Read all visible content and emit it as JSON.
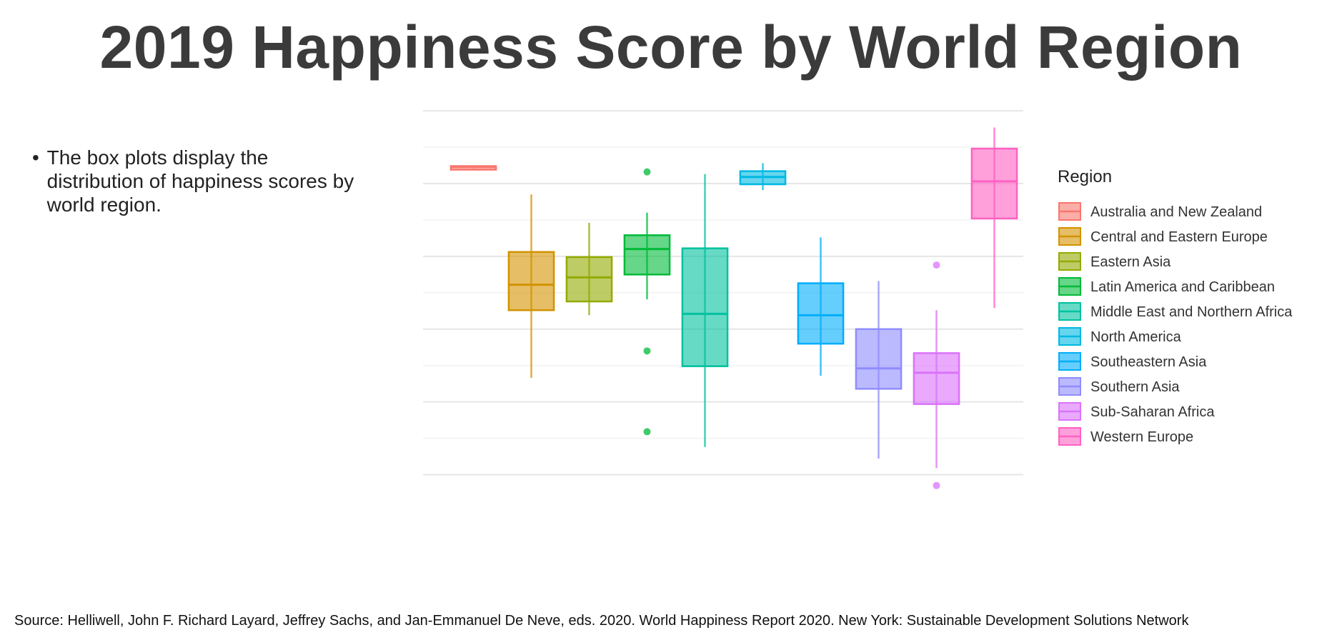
{
  "slide": {
    "title": "2019 Happiness Score by World Region",
    "bullet_symbol": "•",
    "bullet_text": "The box plots display the distribution of happiness scores by world region.",
    "source": "Source: Helliwell, John F. Richard Layard, Jeffrey Sachs, and Jan-Emmanuel De Neve, eds. 2020. World Happiness Report 2020. New York: Sustainable Development Solutions Network"
  },
  "chart_data": {
    "type": "box",
    "title": "",
    "xlabel": "",
    "ylabel": "",
    "ylim": [
      2.75,
      8.05
    ],
    "yticks": [
      3,
      4,
      5,
      6,
      7,
      8
    ],
    "grid": true,
    "legend_title": "Region",
    "legend_position": "right",
    "series": [
      {
        "name": "Australia and New Zealand",
        "color": "#F8766D",
        "q1": 7.22,
        "median": 7.23,
        "q3": 7.24,
        "whisker_low": 7.21,
        "whisker_high": 7.25,
        "outliers": []
      },
      {
        "name": "Central and Eastern Europe",
        "color": "#D39200",
        "q1": 5.26,
        "median": 5.61,
        "q3": 6.06,
        "whisker_low": 4.33,
        "whisker_high": 6.85,
        "outliers": []
      },
      {
        "name": "Eastern Asia",
        "color": "#93AA00",
        "q1": 5.38,
        "median": 5.71,
        "q3": 5.99,
        "whisker_low": 5.19,
        "whisker_high": 6.46,
        "outliers": []
      },
      {
        "name": "Latin America and Caribbean",
        "color": "#00BA38",
        "q1": 5.75,
        "median": 6.1,
        "q3": 6.29,
        "whisker_low": 5.41,
        "whisker_high": 6.6,
        "outliers": [
          7.16,
          4.7,
          3.59
        ]
      },
      {
        "name": "Middle East and Northern Africa",
        "color": "#00C19F",
        "q1": 4.49,
        "median": 5.21,
        "q3": 6.11,
        "whisker_low": 3.38,
        "whisker_high": 7.13,
        "outliers": []
      },
      {
        "name": "North America",
        "color": "#00B9E3",
        "q1": 6.99,
        "median": 7.09,
        "q3": 7.17,
        "whisker_low": 6.91,
        "whisker_high": 7.28,
        "outliers": []
      },
      {
        "name": "Southeastern Asia",
        "color": "#00ADFA",
        "q1": 4.8,
        "median": 5.19,
        "q3": 5.63,
        "whisker_low": 4.36,
        "whisker_high": 6.26,
        "outliers": []
      },
      {
        "name": "Southern Asia",
        "color": "#8F8CFF",
        "q1": 4.18,
        "median": 4.46,
        "q3": 5.0,
        "whisker_low": 3.22,
        "whisker_high": 5.66,
        "outliers": []
      },
      {
        "name": "Sub-Saharan Africa",
        "color": "#DB72FB",
        "q1": 3.97,
        "median": 4.4,
        "q3": 4.67,
        "whisker_low": 3.09,
        "whisker_high": 5.26,
        "outliers": [
          5.88,
          2.85
        ]
      },
      {
        "name": "Western Europe",
        "color": "#FF61C3",
        "q1": 6.52,
        "median": 7.03,
        "q3": 7.48,
        "whisker_low": 5.29,
        "whisker_high": 7.77,
        "outliers": []
      }
    ]
  }
}
